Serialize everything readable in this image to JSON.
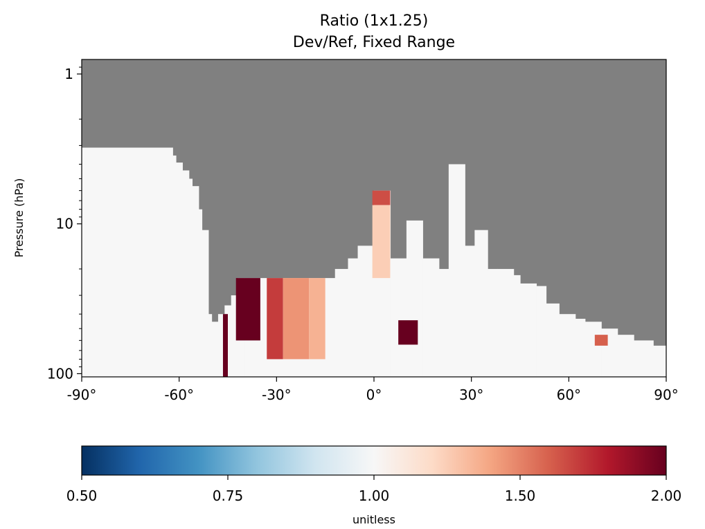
{
  "chart_data": {
    "type": "heatmap",
    "title": "Ratio (1x1.25)",
    "subtitle": "Dev/Ref, Fixed Range",
    "xlabel": "",
    "ylabel": "Pressure (hPa)",
    "x_ticks": [
      "-90°",
      "-60°",
      "-30°",
      "0°",
      "30°",
      "60°",
      "90°"
    ],
    "xlim": [
      -90,
      90
    ],
    "y_scale": "log",
    "y_ticks": [
      "1",
      "10",
      "100"
    ],
    "ylim": [
      105,
      0.8
    ],
    "masked_color": "#808080",
    "colorbar": {
      "label": "unitless",
      "ticks": [
        "0.50",
        "0.75",
        "1.00",
        "1.50",
        "2.00"
      ],
      "range": [
        0.5,
        2.0
      ],
      "colormap": "RdBu_r",
      "orientation": "horizontal"
    },
    "data_top_boundary": {
      "note": "pressure (hPa) of the top of valid data per longitude band; above is masked (gray)",
      "lat": [
        -90,
        -62,
        -61,
        -59,
        -57,
        -56,
        -54,
        -53,
        -51,
        -50,
        -48,
        -46,
        -44,
        -42,
        -40,
        -12,
        -8,
        -5,
        0,
        5,
        10,
        15,
        20,
        23,
        28,
        31,
        35,
        38,
        43,
        45,
        50,
        53,
        57,
        62,
        65,
        70,
        75,
        80,
        86,
        90
      ],
      "top_hPa": [
        3.1,
        3.5,
        3.9,
        4.4,
        5.0,
        5.6,
        8.0,
        11.0,
        40.0,
        45.0,
        40.0,
        35.0,
        30.0,
        23.0,
        23.0,
        20.0,
        17.0,
        14.0,
        6.0,
        17.0,
        9.5,
        17.0,
        20.0,
        4.0,
        14.0,
        11.0,
        20.0,
        20.0,
        22.0,
        25.0,
        26.0,
        34.0,
        40.0,
        43.0,
        45.0,
        50.0,
        55.0,
        60.0,
        65.0,
        85.0
      ]
    },
    "notable_cells": [
      {
        "lat_range": [
          -42.5,
          -35
        ],
        "p_range": [
          23,
          60
        ],
        "ratio": 2.0
      },
      {
        "lat_range": [
          -46.5,
          -45
        ],
        "p_range": [
          40,
          105
        ],
        "ratio": 2.0
      },
      {
        "lat_range": [
          -33,
          -28
        ],
        "p_range": [
          23,
          80
        ],
        "ratio": 1.7
      },
      {
        "lat_range": [
          -28,
          -20
        ],
        "p_range": [
          23,
          80
        ],
        "ratio": 1.45
      },
      {
        "lat_range": [
          -20,
          -15
        ],
        "p_range": [
          23,
          80
        ],
        "ratio": 1.35
      },
      {
        "lat_range": [
          -0.5,
          5
        ],
        "p_range": [
          6,
          7.5
        ],
        "ratio": 1.65
      },
      {
        "lat_range": [
          -0.5,
          5
        ],
        "p_range": [
          7.5,
          23
        ],
        "ratio": 1.25
      },
      {
        "lat_range": [
          7.5,
          13.5
        ],
        "p_range": [
          44,
          64
        ],
        "ratio": 2.0
      },
      {
        "lat_range": [
          68,
          72
        ],
        "p_range": [
          55,
          65
        ],
        "ratio": 1.6
      }
    ],
    "background_ratio": 1.0
  }
}
